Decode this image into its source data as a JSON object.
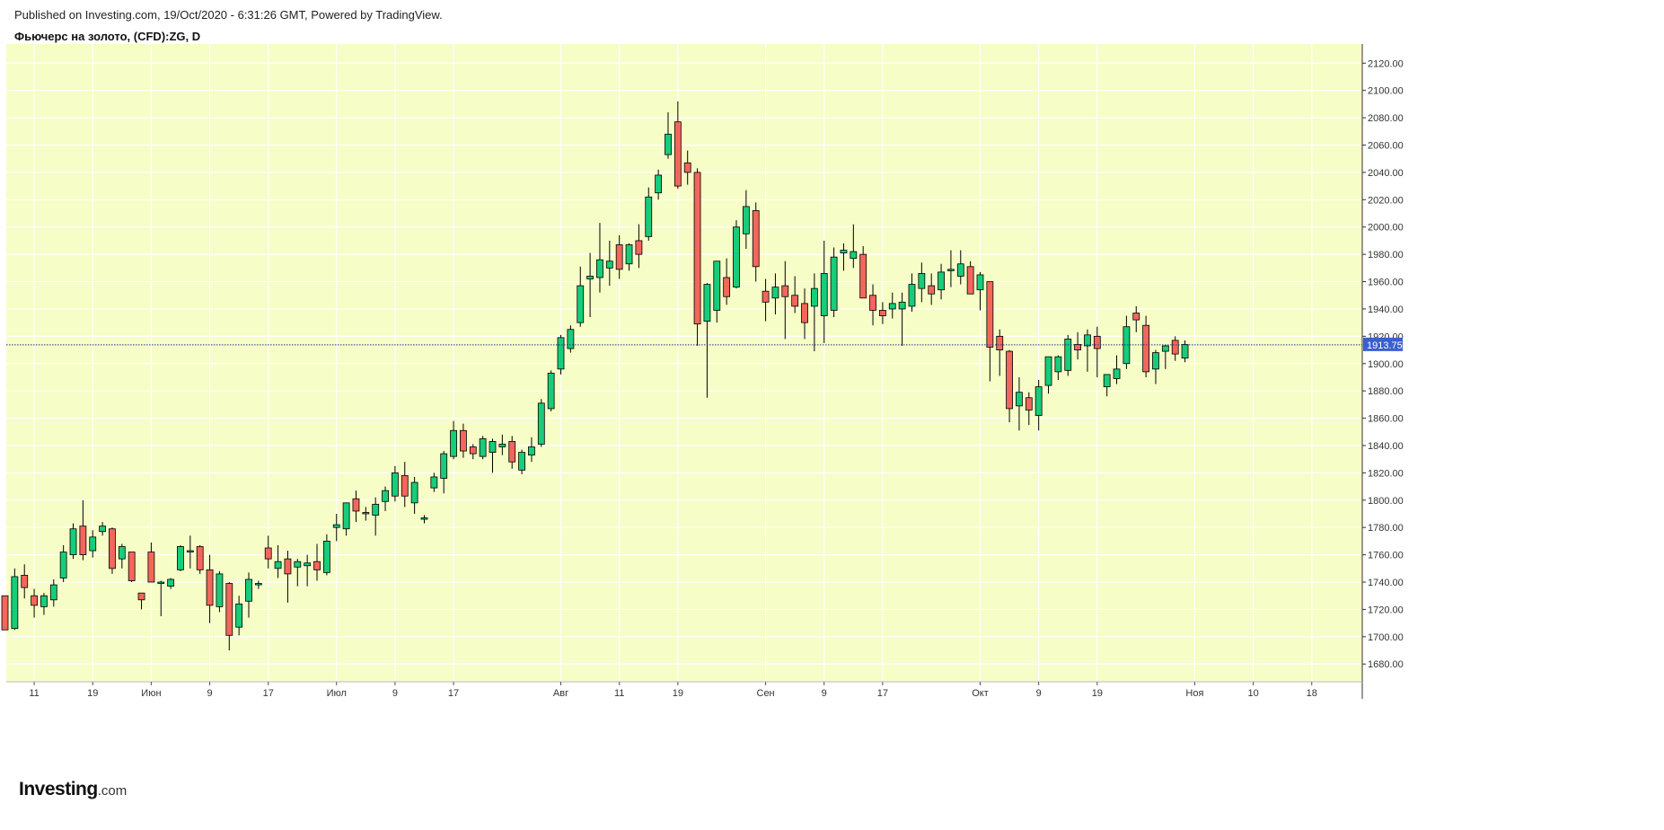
{
  "header": {
    "published": "Published on Investing.com, 19/Oct/2020 - 6:31:26 GMT, Powered by TradingView.",
    "title": "Фьючерс на золото, (CFD):ZG, D"
  },
  "logo": {
    "brand": "Investing",
    "suffix": ".com"
  },
  "colors": {
    "background": "#f7fdc6",
    "grid": "#ffffff",
    "up": "#17cd7a",
    "down": "#f2665c",
    "wick": "#000000",
    "price_line": "#26338a",
    "price_label_bg": "#3a5fd1"
  },
  "chart_data": {
    "type": "candlestick",
    "title": "Фьючерс на золото, (CFD):ZG, D",
    "y_axis": {
      "position": "right",
      "ylim": [
        1667,
        2134
      ],
      "ticks": [
        1680,
        1700,
        1720,
        1740,
        1760,
        1780,
        1800,
        1820,
        1840,
        1860,
        1880,
        1900,
        1920,
        1940,
        1960,
        1980,
        2000,
        2020,
        2040,
        2060,
        2080,
        2100,
        2120
      ],
      "tick_labels": [
        "1680.00",
        "1700.00",
        "1720.00",
        "1740.00",
        "1760.00",
        "1780.00",
        "1800.00",
        "1820.00",
        "1840.00",
        "1860.00",
        "1880.00",
        "1900.00",
        "1920.00",
        "1940.00",
        "1960.00",
        "1980.00",
        "2000.00",
        "2020.00",
        "2040.00",
        "2060.00",
        "2080.00",
        "2100.00",
        "2120.00"
      ]
    },
    "x_axis": {
      "labels": [
        {
          "text": "11",
          "i": 3
        },
        {
          "text": "19",
          "i": 9
        },
        {
          "text": "Июн",
          "i": 15
        },
        {
          "text": "9",
          "i": 21
        },
        {
          "text": "17",
          "i": 27
        },
        {
          "text": "Июл",
          "i": 34
        },
        {
          "text": "9",
          "i": 40
        },
        {
          "text": "17",
          "i": 46
        },
        {
          "text": "Авг",
          "i": 57
        },
        {
          "text": "11",
          "i": 63
        },
        {
          "text": "19",
          "i": 69
        },
        {
          "text": "Сен",
          "i": 78
        },
        {
          "text": "9",
          "i": 84
        },
        {
          "text": "17",
          "i": 90
        },
        {
          "text": "Окт",
          "i": 100
        },
        {
          "text": "9",
          "i": 106
        },
        {
          "text": "19",
          "i": 112
        },
        {
          "text": "Ноя",
          "i": 122
        },
        {
          "text": "10",
          "i": 128
        },
        {
          "text": "18",
          "i": 134
        }
      ]
    },
    "current_price": 1913.75,
    "current_price_label": "1913.75",
    "grid": true,
    "candles": [
      [
        1730,
        1730,
        1705,
        1705
      ],
      [
        1706,
        1750,
        1705,
        1744
      ],
      [
        1745,
        1753,
        1728,
        1736
      ],
      [
        1730,
        1735,
        1714,
        1723
      ],
      [
        1722,
        1732,
        1716,
        1730
      ],
      [
        1727,
        1742,
        1722,
        1738
      ],
      [
        1743,
        1767,
        1740,
        1762
      ],
      [
        1760,
        1783,
        1757,
        1779
      ],
      [
        1781,
        1800,
        1756,
        1760
      ],
      [
        1763,
        1778,
        1758,
        1773
      ],
      [
        1777,
        1784,
        1774,
        1781
      ],
      [
        1779,
        1780,
        1746,
        1750
      ],
      [
        1757,
        1768,
        1750,
        1766
      ],
      [
        1762,
        1762,
        1740,
        1741
      ],
      [
        1732,
        1732,
        1720,
        1727
      ],
      [
        1762,
        1769,
        1740,
        1740
      ],
      [
        1739,
        1741,
        1715,
        1740
      ],
      [
        1737,
        1743,
        1735,
        1742
      ],
      [
        1749,
        1767,
        1748,
        1766
      ],
      [
        1762,
        1774,
        1750,
        1763
      ],
      [
        1766,
        1767,
        1746,
        1749
      ],
      [
        1749,
        1760,
        1710,
        1723
      ],
      [
        1722,
        1748,
        1718,
        1746
      ],
      [
        1739,
        1740,
        1690,
        1701
      ],
      [
        1707,
        1730,
        1701,
        1724
      ],
      [
        1726,
        1747,
        1714,
        1742
      ],
      [
        1738,
        1741,
        1735,
        1739
      ],
      [
        1765,
        1774,
        1750,
        1757
      ],
      [
        1750,
        1767,
        1743,
        1755
      ],
      [
        1757,
        1763,
        1725,
        1746
      ],
      [
        1751,
        1757,
        1737,
        1755
      ],
      [
        1752,
        1760,
        1737,
        1754
      ],
      [
        1755,
        1768,
        1741,
        1749
      ],
      [
        1747,
        1775,
        1745,
        1770
      ],
      [
        1780,
        1790,
        1770,
        1782
      ],
      [
        1779,
        1795,
        1774,
        1798
      ],
      [
        1801,
        1807,
        1784,
        1792
      ],
      [
        1791,
        1795,
        1785,
        1790
      ],
      [
        1789,
        1802,
        1774,
        1797
      ],
      [
        1799,
        1810,
        1792,
        1807
      ],
      [
        1803,
        1825,
        1799,
        1820
      ],
      [
        1818,
        1828,
        1795,
        1803
      ],
      [
        1798,
        1817,
        1790,
        1813
      ],
      [
        1787,
        1789,
        1783,
        1787
      ],
      [
        1809,
        1820,
        1806,
        1817
      ],
      [
        1816,
        1836,
        1805,
        1834
      ],
      [
        1832,
        1858,
        1830,
        1851
      ],
      [
        1851,
        1856,
        1831,
        1836
      ],
      [
        1839,
        1841,
        1830,
        1834
      ],
      [
        1832,
        1847,
        1830,
        1845
      ],
      [
        1835,
        1845,
        1820,
        1843
      ],
      [
        1839,
        1848,
        1833,
        1841
      ],
      [
        1843,
        1847,
        1823,
        1828
      ],
      [
        1822,
        1837,
        1819,
        1835
      ],
      [
        1833,
        1846,
        1828,
        1839
      ],
      [
        1841,
        1874,
        1839,
        1871
      ],
      [
        1867,
        1895,
        1865,
        1893
      ],
      [
        1896,
        1921,
        1892,
        1919
      ],
      [
        1911,
        1928,
        1908,
        1925
      ],
      [
        1930,
        1971,
        1927,
        1957
      ],
      [
        1962,
        1981,
        1934,
        1964
      ],
      [
        1963,
        2003,
        1952,
        1976
      ],
      [
        1970,
        1990,
        1957,
        1975
      ],
      [
        1987,
        1994,
        1962,
        1969
      ],
      [
        1973,
        1988,
        1968,
        1987
      ],
      [
        1990,
        2002,
        1970,
        1980
      ],
      [
        1993,
        2029,
        1990,
        2022
      ],
      [
        2025,
        2042,
        2020,
        2038
      ],
      [
        2053,
        2084,
        2050,
        2068
      ],
      [
        2077,
        2092,
        2028,
        2030
      ],
      [
        2047,
        2056,
        2031,
        2040
      ],
      [
        2040,
        2043,
        1913,
        1929
      ],
      [
        1931,
        1959,
        1875,
        1958
      ],
      [
        1939,
        1975,
        1930,
        1975
      ],
      [
        1963,
        1977,
        1943,
        1949
      ],
      [
        1956,
        2005,
        1955,
        2000
      ],
      [
        1995,
        2027,
        1984,
        2015
      ],
      [
        2012,
        2018,
        1960,
        1971
      ],
      [
        1953,
        1962,
        1931,
        1945
      ],
      [
        1948,
        1966,
        1936,
        1956
      ],
      [
        1957,
        1975,
        1918,
        1949
      ],
      [
        1950,
        1964,
        1937,
        1942
      ],
      [
        1944,
        1955,
        1918,
        1930
      ],
      [
        1942,
        1966,
        1909,
        1955
      ],
      [
        1935,
        1990,
        1915,
        1966
      ],
      [
        1939,
        1985,
        1934,
        1978
      ],
      [
        1981,
        1988,
        1968,
        1983
      ],
      [
        1977,
        2002,
        1970,
        1982
      ],
      [
        1980,
        1986,
        1951,
        1948
      ],
      [
        1950,
        1958,
        1928,
        1939
      ],
      [
        1939,
        1945,
        1929,
        1935
      ],
      [
        1940,
        1952,
        1933,
        1944
      ],
      [
        1940,
        1952,
        1913,
        1945
      ],
      [
        1942,
        1966,
        1938,
        1958
      ],
      [
        1955,
        1974,
        1945,
        1966
      ],
      [
        1957,
        1966,
        1943,
        1951
      ],
      [
        1954,
        1973,
        1947,
        1967
      ],
      [
        1969,
        1983,
        1956,
        1969
      ],
      [
        1964,
        1983,
        1958,
        1973
      ],
      [
        1971,
        1975,
        1952,
        1951
      ],
      [
        1954,
        1967,
        1939,
        1965
      ],
      [
        1960,
        1960,
        1887,
        1912
      ],
      [
        1920,
        1925,
        1891,
        1910
      ],
      [
        1909,
        1910,
        1857,
        1867
      ],
      [
        1869,
        1890,
        1851,
        1879
      ],
      [
        1875,
        1879,
        1855,
        1866
      ],
      [
        1862,
        1888,
        1851,
        1883
      ],
      [
        1884,
        1901,
        1878,
        1905
      ],
      [
        1894,
        1906,
        1888,
        1905
      ],
      [
        1895,
        1921,
        1891,
        1918
      ],
      [
        1914,
        1923,
        1903,
        1910
      ],
      [
        1913,
        1925,
        1894,
        1921
      ],
      [
        1920,
        1927,
        1890,
        1911
      ],
      [
        1883,
        1888,
        1876,
        1892
      ],
      [
        1889,
        1906,
        1885,
        1896
      ],
      [
        1900,
        1935,
        1896,
        1927
      ],
      [
        1937,
        1942,
        1923,
        1932
      ],
      [
        1928,
        1935,
        1890,
        1894
      ],
      [
        1896,
        1910,
        1885,
        1908
      ],
      [
        1909,
        1914,
        1896,
        1913
      ],
      [
        1917,
        1920,
        1902,
        1907
      ],
      [
        1904,
        1917,
        1901,
        1914
      ]
    ]
  }
}
